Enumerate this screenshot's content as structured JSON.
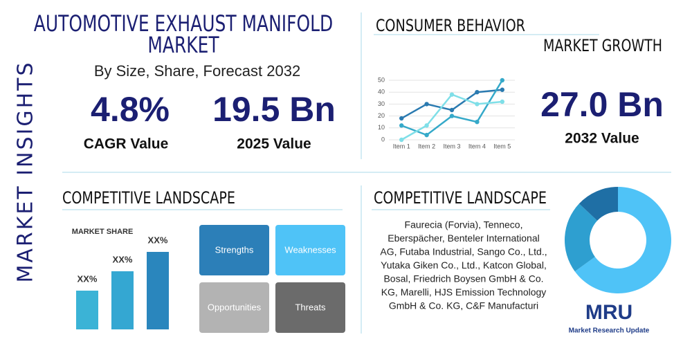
{
  "sidebar": {
    "label": "MARKET INSIGHTS"
  },
  "header": {
    "title_lines": [
      "AUTOMOTIVE EXHAUST MANIFOLD",
      "MARKET"
    ],
    "subtitle": "By Size, Share, Forecast 2032"
  },
  "stats": [
    {
      "value": "4.8%",
      "label": "CAGR Value"
    },
    {
      "value": "19.5 Bn",
      "label": "2025 Value"
    },
    {
      "value": "27.0 Bn",
      "label": "2032 Value"
    }
  ],
  "consumer_behavior": {
    "title": "CONSUMER BEHAVIOR",
    "subtitle": "MARKET GROWTH",
    "chart": {
      "type": "line",
      "categories": [
        "Item 1",
        "Item 2",
        "Item 3",
        "Item 4",
        "Item 5"
      ],
      "series": [
        {
          "color": "#2a7ab0",
          "values": [
            18,
            30,
            25,
            40,
            42
          ]
        },
        {
          "color": "#35a9c9",
          "values": [
            12,
            4,
            20,
            15,
            50
          ]
        },
        {
          "color": "#7fdfe8",
          "values": [
            0,
            12,
            38,
            30,
            32
          ]
        }
      ],
      "ylim": [
        0,
        50
      ],
      "yticks": [
        0,
        10,
        20,
        30,
        40,
        50
      ],
      "grid": true
    }
  },
  "market_share": {
    "title": "COMPETITIVE LANDSCAPE",
    "chart": {
      "type": "bar",
      "title": "MARKET SHARE",
      "values": [
        20,
        30,
        40
      ],
      "value_labels": [
        "XX%",
        "XX%",
        "XX%"
      ],
      "colors": [
        "#3bb3d6",
        "#34a7d2",
        "#2a86bd"
      ]
    }
  },
  "swot": [
    {
      "label": "Strengths",
      "color": "#2c7fb8"
    },
    {
      "label": "Weaknesses",
      "color": "#4fc3f7"
    },
    {
      "label": "Opportunities",
      "color": "#b3b3b3"
    },
    {
      "label": "Threats",
      "color": "#6b6b6b"
    }
  ],
  "competitors": {
    "title": "COMPETITIVE LANDSCAPE",
    "lines": [
      "Faurecia (Forvia), Tenneco,",
      "Eberspächer, Benteler International",
      "AG, Futaba Industrial, Sango Co., Ltd.,",
      "Yutaka Giken Co., Ltd., Katcon Global,",
      "Bosal, Friedrich Boysen GmbH & Co.",
      "KG, Marelli, HJS Emission Technology",
      "GmbH & Co. KG, C&F Manufacturi"
    ]
  },
  "share_donut": {
    "type": "pie",
    "values": [
      65,
      22,
      13
    ],
    "colors": [
      "#4fc3f7",
      "#2e9fd0",
      "#1f6fa5"
    ]
  },
  "logo": {
    "mark": "MRU",
    "name": "Market Research Update"
  }
}
